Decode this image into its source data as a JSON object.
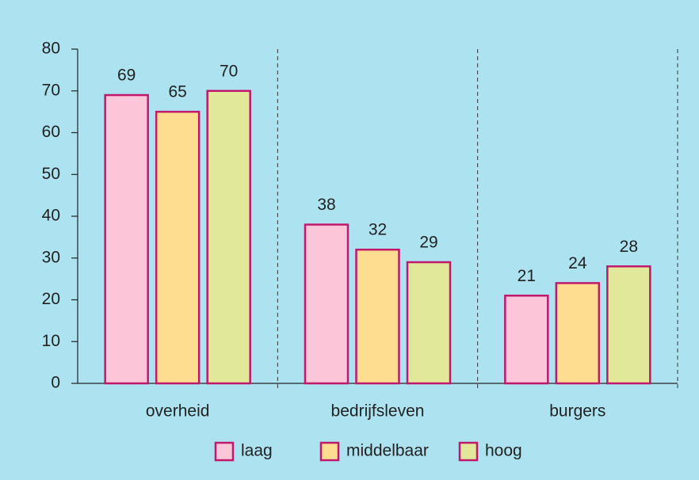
{
  "chart_data": {
    "type": "bar",
    "categories": [
      "overheid",
      "bedrijfsleven",
      "burgers"
    ],
    "series": [
      {
        "name": "laag",
        "color": "#fcc6d8",
        "values": [
          69,
          38,
          21
        ]
      },
      {
        "name": "middelbaar",
        "color": "#fedd90",
        "values": [
          65,
          32,
          24
        ]
      },
      {
        "name": "hoog",
        "color": "#e2e89a",
        "values": [
          70,
          29,
          28
        ]
      }
    ],
    "ylim": [
      0,
      80
    ],
    "yticks": [
      0,
      10,
      20,
      30,
      40,
      50,
      60,
      70,
      80
    ],
    "legend": "bottom"
  }
}
